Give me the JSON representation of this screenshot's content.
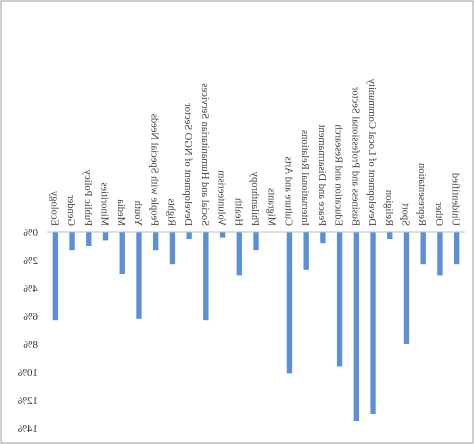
{
  "chart_data": {
    "type": "bar",
    "orientation": "vertical-mirrored",
    "categories": [
      "Ecology",
      "Gender",
      "Public Policy",
      "Minorities",
      "Media",
      "Youth",
      "People with Special Needs",
      "Rights",
      "Development of NGO Sector",
      "Social and Humanitarian Services",
      "Volunteerism",
      "Health",
      "Philanthropy",
      "Migrants",
      "Culture and Arts",
      "International Relations",
      "Peace and Disarmament",
      "Education and Research",
      "Business and Professional Sector",
      "Development of Local Community",
      "Religion",
      "Sport",
      "Representation",
      "Other",
      "Unidentified"
    ],
    "values": [
      6.3,
      1.3,
      1.0,
      0.6,
      3.0,
      6.2,
      1.3,
      2.3,
      0.5,
      6.3,
      0.4,
      3.1,
      1.3,
      0.0,
      10.1,
      2.7,
      0.8,
      9.6,
      13.5,
      13.0,
      0.5,
      8.0,
      2.3,
      3.1,
      2.3
    ],
    "ytick_labels": [
      "0%",
      "2%",
      "4%",
      "6%",
      "8%",
      "10%",
      "12%",
      "14%"
    ],
    "ylim": [
      0,
      14
    ],
    "grid": false,
    "colors": {
      "bar": "#5b8fd6",
      "axis": "#bdbdbd",
      "frame": "#9e9e9e"
    }
  }
}
